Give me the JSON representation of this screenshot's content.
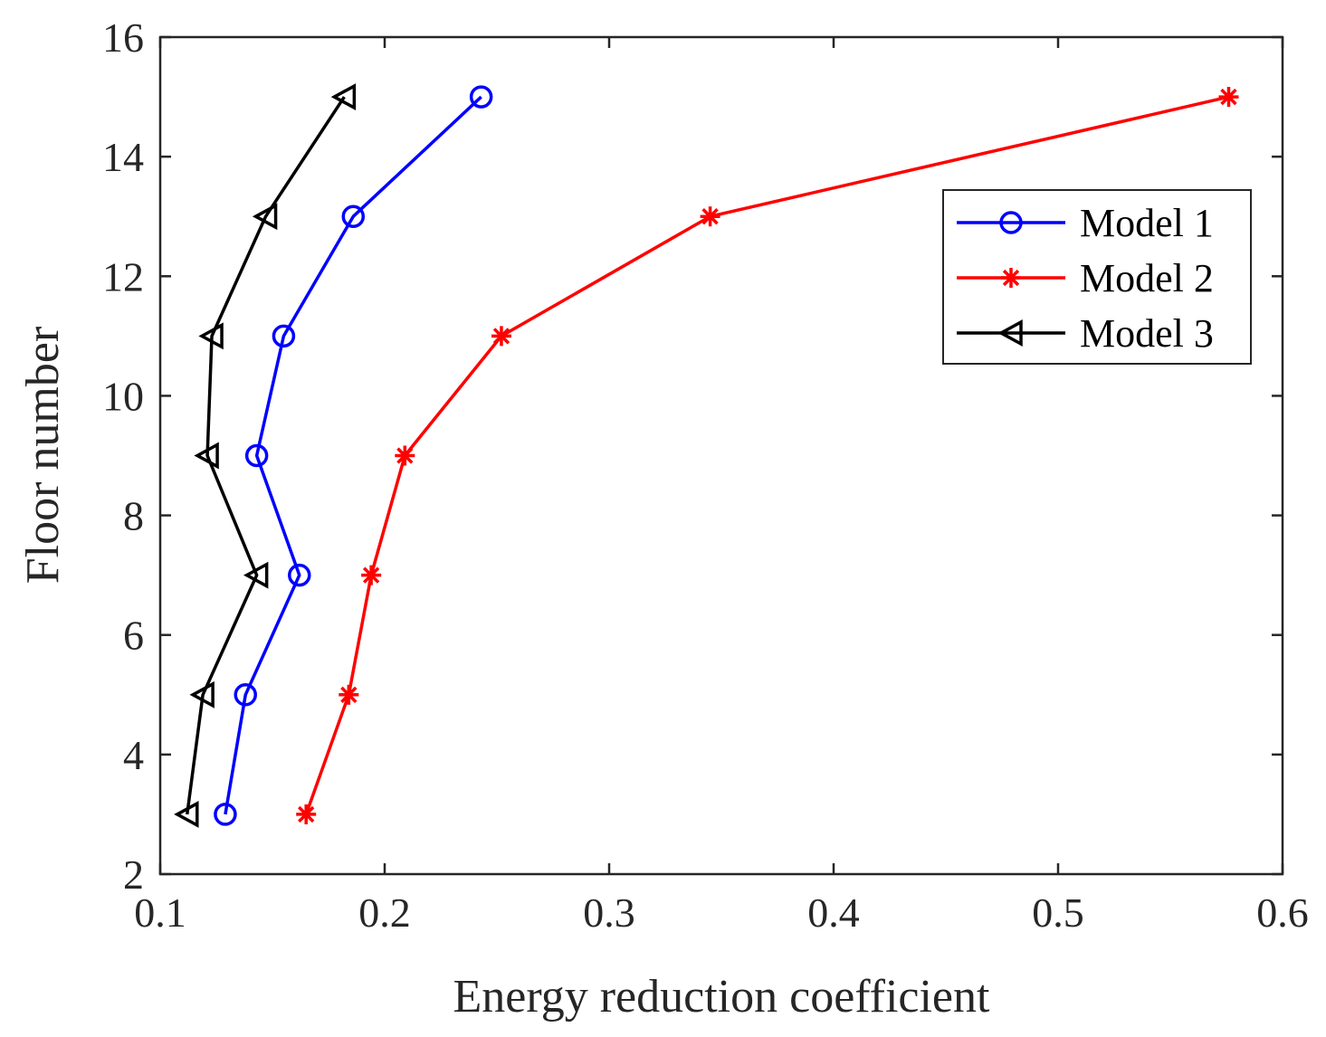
{
  "chart_data": {
    "type": "line",
    "title": "",
    "xlabel": "Energy reduction coefficient",
    "ylabel": "Floor number",
    "xlim": [
      0.1,
      0.6
    ],
    "ylim": [
      2,
      16
    ],
    "xticks": [
      0.1,
      0.2,
      0.3,
      0.4,
      0.5,
      0.6
    ],
    "yticks": [
      2,
      4,
      6,
      8,
      10,
      12,
      14,
      16
    ],
    "xtick_labels": [
      "0.1",
      "0.2",
      "0.3",
      "0.4",
      "0.5",
      "0.6"
    ],
    "ytick_labels": [
      "2",
      "4",
      "6",
      "8",
      "10",
      "12",
      "14",
      "16"
    ],
    "grid": false,
    "legend_position": "upper-right",
    "series": [
      {
        "name": "Model 1",
        "color": "#0000ff",
        "marker": "circle",
        "points": [
          {
            "x": 0.129,
            "y": 3
          },
          {
            "x": 0.138,
            "y": 5
          },
          {
            "x": 0.162,
            "y": 7
          },
          {
            "x": 0.143,
            "y": 9
          },
          {
            "x": 0.155,
            "y": 11
          },
          {
            "x": 0.186,
            "y": 13
          },
          {
            "x": 0.243,
            "y": 15
          }
        ]
      },
      {
        "name": "Model 2",
        "color": "#ff0000",
        "marker": "asterisk",
        "points": [
          {
            "x": 0.165,
            "y": 3
          },
          {
            "x": 0.184,
            "y": 5
          },
          {
            "x": 0.194,
            "y": 7
          },
          {
            "x": 0.209,
            "y": 9
          },
          {
            "x": 0.252,
            "y": 11
          },
          {
            "x": 0.345,
            "y": 13
          },
          {
            "x": 0.576,
            "y": 15
          }
        ]
      },
      {
        "name": "Model 3",
        "color": "#000000",
        "marker": "triangle-left",
        "points": [
          {
            "x": 0.112,
            "y": 3
          },
          {
            "x": 0.119,
            "y": 5
          },
          {
            "x": 0.143,
            "y": 7
          },
          {
            "x": 0.121,
            "y": 9
          },
          {
            "x": 0.123,
            "y": 11
          },
          {
            "x": 0.147,
            "y": 13
          },
          {
            "x": 0.182,
            "y": 15
          }
        ]
      }
    ]
  }
}
